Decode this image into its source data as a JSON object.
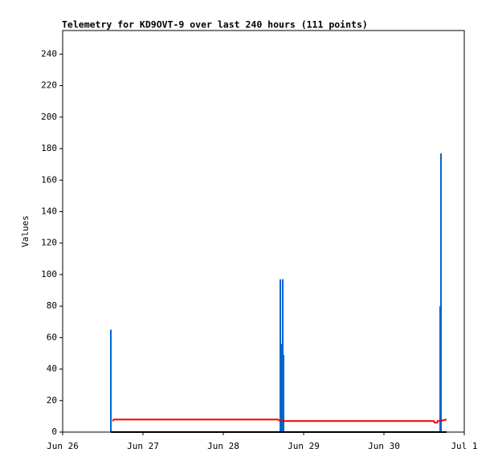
{
  "chart_data": {
    "type": "telemetry",
    "title": "Telemetry for KD9OVT-9 over last 240 hours (111 points)",
    "y_label": "Values",
    "xlim": [
      0,
      5
    ],
    "xticks": [
      {
        "value": 0,
        "label": "Jun 26"
      },
      {
        "value": 1,
        "label": "Jun 27"
      },
      {
        "value": 2,
        "label": "Jun 28"
      },
      {
        "value": 3,
        "label": "Jun 29"
      },
      {
        "value": 4,
        "label": "Jun 30"
      },
      {
        "value": 5,
        "label": "Jul 1"
      }
    ],
    "ylim": [
      0,
      255
    ],
    "yticks": [
      0,
      20,
      40,
      60,
      80,
      100,
      120,
      140,
      160,
      180,
      200,
      220,
      240
    ],
    "series": [
      {
        "style": "impulse",
        "color": "#0066cc",
        "x": [
          0.6,
          2.71,
          2.73,
          2.74,
          2.75,
          4.7,
          4.71
        ],
        "values": [
          65,
          97,
          56,
          97,
          49,
          80,
          177
        ]
      },
      {
        "style": "line",
        "color": "#000000",
        "x": [
          0.6,
          4.78
        ],
        "values": [
          0,
          0
        ]
      },
      {
        "style": "line",
        "color": "#ee0000",
        "x": [
          0.62,
          0.64,
          2.68,
          2.71,
          2.74,
          4.62,
          4.63,
          4.66,
          4.67,
          4.7,
          4.78
        ],
        "values": [
          7,
          8,
          8,
          7,
          7,
          7,
          6,
          6,
          7,
          7,
          8
        ]
      }
    ]
  }
}
